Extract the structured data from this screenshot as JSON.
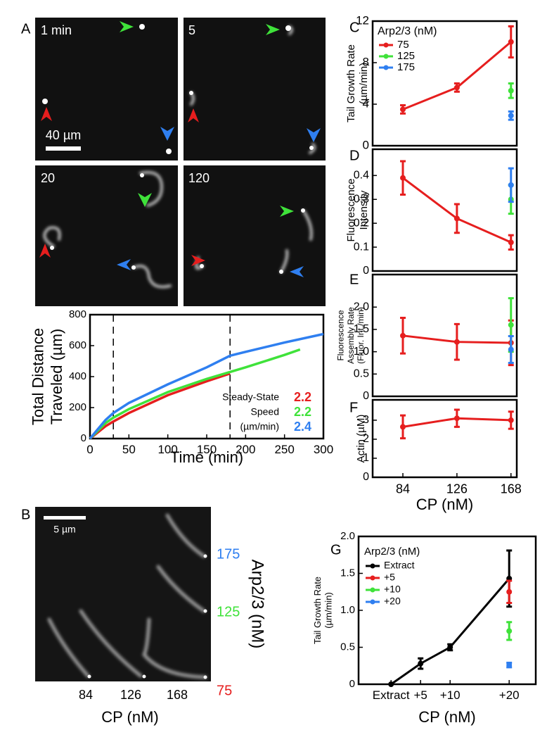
{
  "panel_labels": [
    "A",
    "B",
    "C",
    "D",
    "E",
    "F",
    "G"
  ],
  "micrographs_A": {
    "times": [
      "1 min",
      "5",
      "20",
      "120"
    ],
    "scale_bar": "40 µm"
  },
  "image_B": {
    "scale_bar": "5 µm",
    "arp_labels": [
      "175",
      "125",
      "75"
    ],
    "arp_colors": [
      "#2f7ff0",
      "#3fe23a",
      "#e61e1e"
    ],
    "arp_title": "Arp2/3 (nM)",
    "cp_labels": [
      "84",
      "126",
      "168"
    ],
    "cp_title": "CP (nM)"
  },
  "chart_data": [
    {
      "type": "line",
      "ylabel": [
        "Total Distance",
        "Traveled (µm)"
      ],
      "xlabel": "Time (min)",
      "xlim": [
        0,
        300
      ],
      "ylim": [
        0,
        800
      ],
      "xticks": [
        0,
        50,
        100,
        150,
        200,
        250,
        300
      ],
      "yticks": [
        0,
        200,
        400,
        600,
        800
      ],
      "vlines": [
        30,
        180
      ],
      "series": [
        {
          "color": "#e61e1e",
          "x": [
            0,
            10,
            20,
            30,
            50,
            100,
            150,
            180
          ],
          "values": [
            0,
            40,
            80,
            110,
            165,
            280,
            370,
            420
          ]
        },
        {
          "color": "#3fe23a",
          "x": [
            0,
            10,
            20,
            30,
            50,
            100,
            150,
            200,
            250,
            270
          ],
          "values": [
            0,
            50,
            100,
            135,
            190,
            300,
            385,
            460,
            540,
            575
          ]
        },
        {
          "color": "#2f7ff0",
          "x": [
            0,
            10,
            20,
            30,
            50,
            100,
            150,
            180,
            200,
            250,
            300
          ],
          "values": [
            0,
            60,
            120,
            165,
            230,
            350,
            460,
            535,
            560,
            620,
            675
          ]
        }
      ],
      "annotation": {
        "labels": [
          "Steady-State",
          "Speed",
          "(µm/min)"
        ],
        "values": [
          2.2,
          2.2,
          2.4
        ]
      }
    },
    {
      "type": "errorbar",
      "ylabel": [
        "Tail Growth Rate",
        "(µm/min)"
      ],
      "legend_title": "Arp2/3 (nM)",
      "xlim": [
        60.5,
        172.5
      ],
      "ylim": [
        0,
        12
      ],
      "yticks": [
        0,
        4,
        8,
        12
      ],
      "series": [
        {
          "name": "75",
          "color": "#e61e1e",
          "x": [
            84,
            126,
            168
          ],
          "values": [
            3.5,
            5.6,
            10
          ],
          "errors": [
            0.4,
            0.4,
            1.5
          ]
        },
        {
          "name": "125",
          "color": "#3fe23a",
          "x": [
            168
          ],
          "values": [
            5.3
          ],
          "errors": [
            0.7
          ]
        },
        {
          "name": "175",
          "color": "#2f7ff0",
          "x": [
            168
          ],
          "values": [
            2.9
          ],
          "errors": [
            0.4
          ]
        }
      ]
    },
    {
      "type": "errorbar",
      "ylabel": [
        "Fluorescence",
        "Intensity"
      ],
      "xlim": [
        60.5,
        172.5
      ],
      "ylim": [
        0,
        0.51
      ],
      "yticks": [
        0,
        0.1,
        0.2,
        0.3,
        0.4
      ],
      "series": [
        {
          "color": "#e61e1e",
          "x": [
            84,
            126,
            168
          ],
          "values": [
            0.39,
            0.22,
            0.12
          ],
          "errors": [
            0.07,
            0.06,
            0.03
          ]
        },
        {
          "color": "#3fe23a",
          "x": [
            168
          ],
          "values": [
            0.3
          ],
          "errors": [
            0.06
          ]
        },
        {
          "color": "#2f7ff0",
          "x": [
            168
          ],
          "values": [
            0.36
          ],
          "errors": [
            0.07
          ]
        }
      ]
    },
    {
      "type": "errorbar",
      "ylabel": [
        "Fluorescence",
        "Assembly Rate",
        "(Fluor. Int./min)"
      ],
      "xlim": [
        60.5,
        172.5
      ],
      "ylim": [
        0,
        2.73
      ],
      "yticks": [
        0,
        0.5,
        {
          "value": 1,
          "label": "1.0"
        },
        1.5,
        {
          "value": 2,
          "label": "2.0"
        }
      ],
      "series": [
        {
          "color": "#e61e1e",
          "x": [
            84,
            126,
            168
          ],
          "values": [
            1.36,
            1.22,
            1.2
          ],
          "errors": [
            0.4,
            0.4,
            0.5
          ]
        },
        {
          "color": "#3fe23a",
          "x": [
            168
          ],
          "values": [
            1.6
          ],
          "errors": [
            0.6
          ]
        },
        {
          "color": "#2f7ff0",
          "x": [
            168
          ],
          "values": [
            1.05
          ],
          "errors": [
            0.3
          ]
        }
      ]
    },
    {
      "type": "errorbar",
      "ylabel": [
        "Actin (µM)"
      ],
      "xlabel": "CP (nM)",
      "xlim": [
        60.5,
        172.5
      ],
      "ylim": [
        0,
        4.07
      ],
      "yticks": [
        0,
        1,
        2,
        3
      ],
      "xticks": [
        84,
        126,
        168
      ],
      "series": [
        {
          "color": "#e61e1e",
          "x": [
            84,
            126,
            168
          ],
          "values": [
            2.65,
            3.1,
            3.0
          ],
          "errors": [
            0.6,
            0.45,
            0.45
          ]
        }
      ]
    },
    {
      "type": "errorbar",
      "ylabel": [
        "Tail Growth Rate",
        "(µm/min)"
      ],
      "xlabel": "CP (nM)",
      "legend_title": "Arp2/3 (nM)",
      "xlim": [
        -5.5,
        24.5
      ],
      "ylim": [
        0,
        2.0
      ],
      "yticks": [
        0,
        0.5,
        {
          "value": 1,
          "label": "1.0"
        },
        1.5,
        {
          "value": 2,
          "label": "2.0"
        }
      ],
      "xticks": [
        {
          "value": 0,
          "label": "Extract"
        },
        {
          "value": 5,
          "label": "+5"
        },
        {
          "value": 10,
          "label": "+10"
        },
        {
          "value": 20,
          "label": "+20"
        }
      ],
      "series": [
        {
          "name": "Extract",
          "color": "#000000",
          "x": [
            0,
            5,
            10,
            20
          ],
          "values": [
            0,
            0.28,
            0.5,
            1.43
          ],
          "errors": [
            0,
            0.07,
            0.04,
            0.38
          ]
        },
        {
          "name": "+5",
          "color": "#e61e1e",
          "x": [
            20
          ],
          "values": [
            1.25
          ],
          "errors": [
            0.15
          ]
        },
        {
          "name": "+10",
          "color": "#3fe23a",
          "x": [
            20
          ],
          "values": [
            0.72
          ],
          "errors": [
            0.12
          ]
        },
        {
          "name": "+20",
          "color": "#2f7ff0",
          "x": [
            20
          ],
          "values": [
            0.26
          ],
          "errors": [
            0.03
          ]
        }
      ]
    }
  ]
}
